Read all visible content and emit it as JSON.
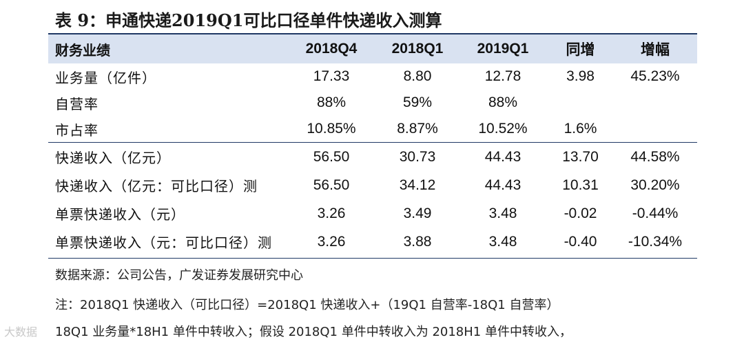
{
  "title": "表 9：申通快递2019Q1可比口径单件快递收入测算",
  "table": {
    "headers": [
      "财务业绩",
      "2018Q4",
      "2018Q1",
      "2019Q1",
      "同增",
      "增幅"
    ],
    "rows": [
      [
        "业务量（亿件）",
        "17.33",
        "8.80",
        "12.78",
        "3.98",
        "45.23%"
      ],
      [
        "自营率",
        "88%",
        "59%",
        "88%",
        "",
        ""
      ],
      [
        "市占率",
        "10.85%",
        "8.87%",
        "10.52%",
        "1.6%",
        ""
      ],
      [
        "快递收入（亿元）",
        "56.50",
        "30.73",
        "44.43",
        "13.70",
        "44.58%"
      ],
      [
        "快递收入（亿元：可比口径）测",
        "56.50",
        "34.12",
        "44.43",
        "10.31",
        "30.20%"
      ],
      [
        "单票快递收入（元）",
        "3.26",
        "3.49",
        "3.48",
        "-0.02",
        "-0.44%"
      ],
      [
        "单票快递收入（元：可比口径）测",
        "3.26",
        "3.88",
        "3.48",
        "-0.40",
        "-10.34%"
      ]
    ]
  },
  "footer": {
    "source": "数据来源：公司公告，广发证券发展研究中心",
    "note1": "注：2018Q1 快递收入（可比口径）=2018Q1 快递收入+（19Q1 自营率-18Q1 自营率）",
    "note2": "18Q1 业务量*18H1 单件中转收入；假设 2018Q1 单件中转收入为 2018H1 单件中转收入，"
  },
  "watermark": "大数据",
  "colors": {
    "header_band": "#d9e2f1",
    "rule": "#1f3864"
  }
}
